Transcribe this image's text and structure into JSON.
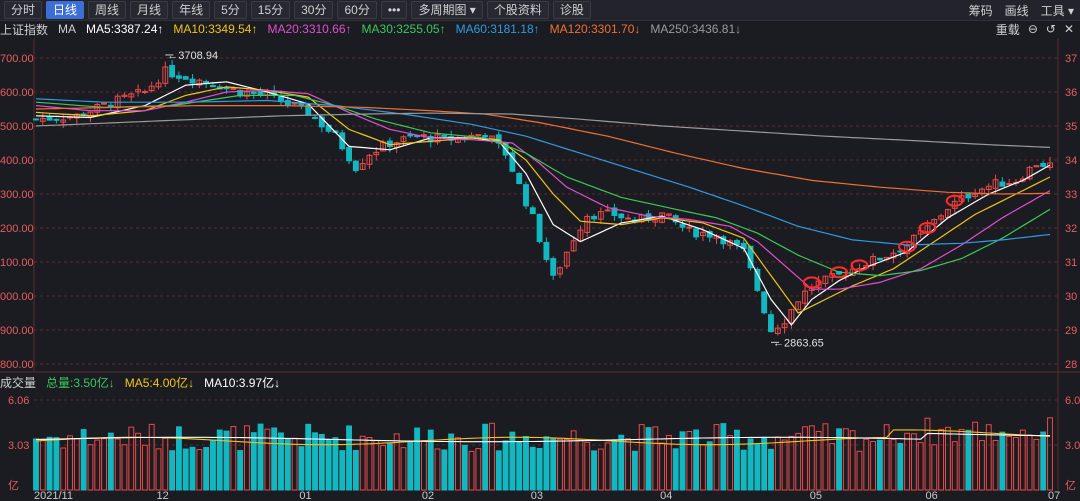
{
  "toolbar": {
    "tabs": [
      "分时",
      "日线",
      "周线",
      "月线",
      "年线",
      "5分",
      "15分",
      "30分",
      "60分",
      "•••",
      "多周期图 ▾",
      "个股资料",
      "诊股"
    ],
    "active_index": 1,
    "right": [
      "筹码",
      "画线",
      "工具 ▾"
    ]
  },
  "ma_bar": {
    "title": "上证指数",
    "label": "MA",
    "ma5": "MA5:3387.24↑",
    "ma10": "MA10:3349.54↑",
    "ma20": "MA20:3310.66↑",
    "ma30": "MA30:3255.05↑",
    "ma60": "MA60:3181.18↑",
    "ma120": "MA120:3301.70↓",
    "ma250": "MA250:3436.81↓",
    "right_label": "重载"
  },
  "vol_bar": {
    "title": "成交量",
    "total": "总量:3.50亿↓",
    "ma5": "MA5:4.00亿↓",
    "ma10": "MA10:3.97亿↓"
  },
  "colors": {
    "background": "#1b1c22",
    "up": "#e84a48",
    "down": "#13b7c0",
    "ma5": "#ffffff",
    "ma10": "#f0c419",
    "ma20": "#e04fd0",
    "ma30": "#3cc85a",
    "ma60": "#2f9be0",
    "ma120": "#f07030",
    "ma250": "#9a9a9a",
    "grid": "#5a2c2c",
    "axis_text": "#e85c5c"
  },
  "icons": [
    "right-arrow-icon",
    "minus-icon",
    "undo-icon",
    "close-icon"
  ],
  "chart_data": {
    "type": "candlestick",
    "title": "上证指数",
    "price_axis": {
      "left_ticks": [
        "700.00",
        "600.00",
        "500.00",
        "400.00",
        "300.00",
        "200.00",
        "100.00",
        "000.00",
        "900.00",
        "800.00"
      ],
      "right_ticks": [
        "37",
        "36",
        "35",
        "34",
        "33",
        "32",
        "31",
        "30",
        "29",
        "28"
      ],
      "ylim": [
        2800,
        3700
      ]
    },
    "volume_axis": {
      "ticks": [
        "6.06",
        "3.03",
        "亿"
      ],
      "right_ticks": [
        "6.0",
        "3.0",
        "亿"
      ],
      "ylim": [
        0,
        6.06
      ]
    },
    "x_axis_labels": [
      "2021/11",
      "12",
      "01",
      "02",
      "03",
      "04",
      "05",
      "06",
      "07"
    ],
    "annotations": [
      {
        "text": "3708.94",
        "type": "high",
        "value": 3708.94
      },
      {
        "text": "2863.65",
        "type": "low",
        "value": 2863.65
      }
    ],
    "close_path": [
      [
        0,
        3520
      ],
      [
        6,
        3530
      ],
      [
        12,
        3575
      ],
      [
        16,
        3600
      ],
      [
        19,
        3660
      ],
      [
        23,
        3640
      ],
      [
        27,
        3620
      ],
      [
        30,
        3600
      ],
      [
        34,
        3590
      ],
      [
        40,
        3540
      ],
      [
        44,
        3470
      ],
      [
        47,
        3380
      ],
      [
        49,
        3420
      ],
      [
        52,
        3450
      ],
      [
        56,
        3470
      ],
      [
        60,
        3460
      ],
      [
        64,
        3470
      ],
      [
        66,
        3480
      ],
      [
        69,
        3420
      ],
      [
        73,
        3230
      ],
      [
        76,
        3050
      ],
      [
        79,
        3170
      ],
      [
        81,
        3240
      ],
      [
        85,
        3240
      ],
      [
        88,
        3220
      ],
      [
        92,
        3240
      ],
      [
        96,
        3190
      ],
      [
        100,
        3180
      ],
      [
        104,
        3130
      ],
      [
        106,
        3020
      ],
      [
        108,
        2900
      ],
      [
        110,
        2930
      ],
      [
        112,
        2990
      ],
      [
        114,
        3030
      ],
      [
        118,
        3060
      ],
      [
        121,
        3090
      ],
      [
        125,
        3120
      ],
      [
        128,
        3150
      ],
      [
        131,
        3200
      ],
      [
        134,
        3260
      ],
      [
        138,
        3310
      ],
      [
        141,
        3330
      ],
      [
        144,
        3340
      ],
      [
        147,
        3390
      ],
      [
        149,
        3385
      ]
    ],
    "moving_averages": [
      {
        "name": "MA5",
        "value": 3387.24,
        "path": [
          [
            0,
            3530
          ],
          [
            8,
            3525
          ],
          [
            16,
            3560
          ],
          [
            22,
            3620
          ],
          [
            28,
            3630
          ],
          [
            34,
            3600
          ],
          [
            40,
            3565
          ],
          [
            46,
            3440
          ],
          [
            52,
            3430
          ],
          [
            58,
            3465
          ],
          [
            64,
            3465
          ],
          [
            68,
            3455
          ],
          [
            72,
            3360
          ],
          [
            76,
            3210
          ],
          [
            80,
            3160
          ],
          [
            86,
            3215
          ],
          [
            92,
            3235
          ],
          [
            98,
            3195
          ],
          [
            104,
            3140
          ],
          [
            108,
            2990
          ],
          [
            111,
            2915
          ],
          [
            114,
            2990
          ],
          [
            118,
            3045
          ],
          [
            122,
            3085
          ],
          [
            128,
            3130
          ],
          [
            134,
            3230
          ],
          [
            140,
            3300
          ],
          [
            145,
            3340
          ],
          [
            149,
            3385
          ]
        ]
      },
      {
        "name": "MA10",
        "value": 3349.54,
        "path": [
          [
            0,
            3540
          ],
          [
            8,
            3530
          ],
          [
            16,
            3545
          ],
          [
            22,
            3590
          ],
          [
            28,
            3615
          ],
          [
            34,
            3605
          ],
          [
            40,
            3585
          ],
          [
            46,
            3490
          ],
          [
            52,
            3445
          ],
          [
            58,
            3455
          ],
          [
            64,
            3465
          ],
          [
            68,
            3460
          ],
          [
            72,
            3400
          ],
          [
            76,
            3300
          ],
          [
            80,
            3220
          ],
          [
            86,
            3210
          ],
          [
            92,
            3230
          ],
          [
            98,
            3215
          ],
          [
            104,
            3170
          ],
          [
            108,
            3060
          ],
          [
            112,
            2950
          ],
          [
            116,
            2990
          ],
          [
            120,
            3030
          ],
          [
            126,
            3080
          ],
          [
            132,
            3160
          ],
          [
            138,
            3240
          ],
          [
            144,
            3300
          ],
          [
            149,
            3350
          ]
        ]
      },
      {
        "name": "MA20",
        "value": 3310.66,
        "path": [
          [
            0,
            3560
          ],
          [
            8,
            3545
          ],
          [
            16,
            3545
          ],
          [
            22,
            3570
          ],
          [
            28,
            3600
          ],
          [
            34,
            3605
          ],
          [
            40,
            3595
          ],
          [
            46,
            3540
          ],
          [
            52,
            3490
          ],
          [
            58,
            3465
          ],
          [
            64,
            3460
          ],
          [
            70,
            3450
          ],
          [
            74,
            3390
          ],
          [
            78,
            3320
          ],
          [
            84,
            3260
          ],
          [
            90,
            3235
          ],
          [
            96,
            3225
          ],
          [
            102,
            3205
          ],
          [
            106,
            3160
          ],
          [
            110,
            3090
          ],
          [
            114,
            3020
          ],
          [
            118,
            3020
          ],
          [
            124,
            3040
          ],
          [
            130,
            3080
          ],
          [
            136,
            3150
          ],
          [
            142,
            3230
          ],
          [
            149,
            3310
          ]
        ]
      },
      {
        "name": "MA30",
        "value": 3255.05,
        "path": [
          [
            0,
            3570
          ],
          [
            10,
            3555
          ],
          [
            20,
            3560
          ],
          [
            30,
            3590
          ],
          [
            38,
            3590
          ],
          [
            44,
            3560
          ],
          [
            50,
            3520
          ],
          [
            58,
            3480
          ],
          [
            66,
            3465
          ],
          [
            72,
            3420
          ],
          [
            78,
            3350
          ],
          [
            86,
            3290
          ],
          [
            94,
            3255
          ],
          [
            100,
            3230
          ],
          [
            106,
            3185
          ],
          [
            112,
            3120
          ],
          [
            118,
            3070
          ],
          [
            124,
            3060
          ],
          [
            130,
            3075
          ],
          [
            136,
            3110
          ],
          [
            142,
            3170
          ],
          [
            149,
            3255
          ]
        ]
      },
      {
        "name": "MA60",
        "value": 3181.18,
        "path": [
          [
            0,
            3580
          ],
          [
            10,
            3570
          ],
          [
            22,
            3570
          ],
          [
            34,
            3575
          ],
          [
            44,
            3560
          ],
          [
            54,
            3535
          ],
          [
            64,
            3505
          ],
          [
            72,
            3470
          ],
          [
            80,
            3420
          ],
          [
            88,
            3370
          ],
          [
            96,
            3320
          ],
          [
            104,
            3265
          ],
          [
            112,
            3205
          ],
          [
            120,
            3165
          ],
          [
            128,
            3150
          ],
          [
            136,
            3155
          ],
          [
            142,
            3165
          ],
          [
            149,
            3181
          ]
        ]
      },
      {
        "name": "MA120",
        "value": 3301.7,
        "path": [
          [
            0,
            3550
          ],
          [
            12,
            3555
          ],
          [
            24,
            3560
          ],
          [
            36,
            3560
          ],
          [
            48,
            3555
          ],
          [
            58,
            3545
          ],
          [
            66,
            3535
          ],
          [
            74,
            3510
          ],
          [
            84,
            3470
          ],
          [
            94,
            3420
          ],
          [
            104,
            3375
          ],
          [
            114,
            3340
          ],
          [
            124,
            3320
          ],
          [
            134,
            3305
          ],
          [
            142,
            3300
          ],
          [
            149,
            3302
          ]
        ]
      },
      {
        "name": "MA250",
        "value": 3436.81,
        "path": [
          [
            0,
            3500
          ],
          [
            12,
            3510
          ],
          [
            24,
            3520
          ],
          [
            36,
            3530
          ],
          [
            48,
            3535
          ],
          [
            58,
            3538
          ],
          [
            70,
            3535
          ],
          [
            80,
            3520
          ],
          [
            92,
            3500
          ],
          [
            104,
            3485
          ],
          [
            116,
            3470
          ],
          [
            128,
            3458
          ],
          [
            140,
            3445
          ],
          [
            149,
            3437
          ]
        ]
      }
    ],
    "volume": {
      "last": 3.5,
      "ma5": 4.0,
      "ma10": 3.97
    }
  }
}
